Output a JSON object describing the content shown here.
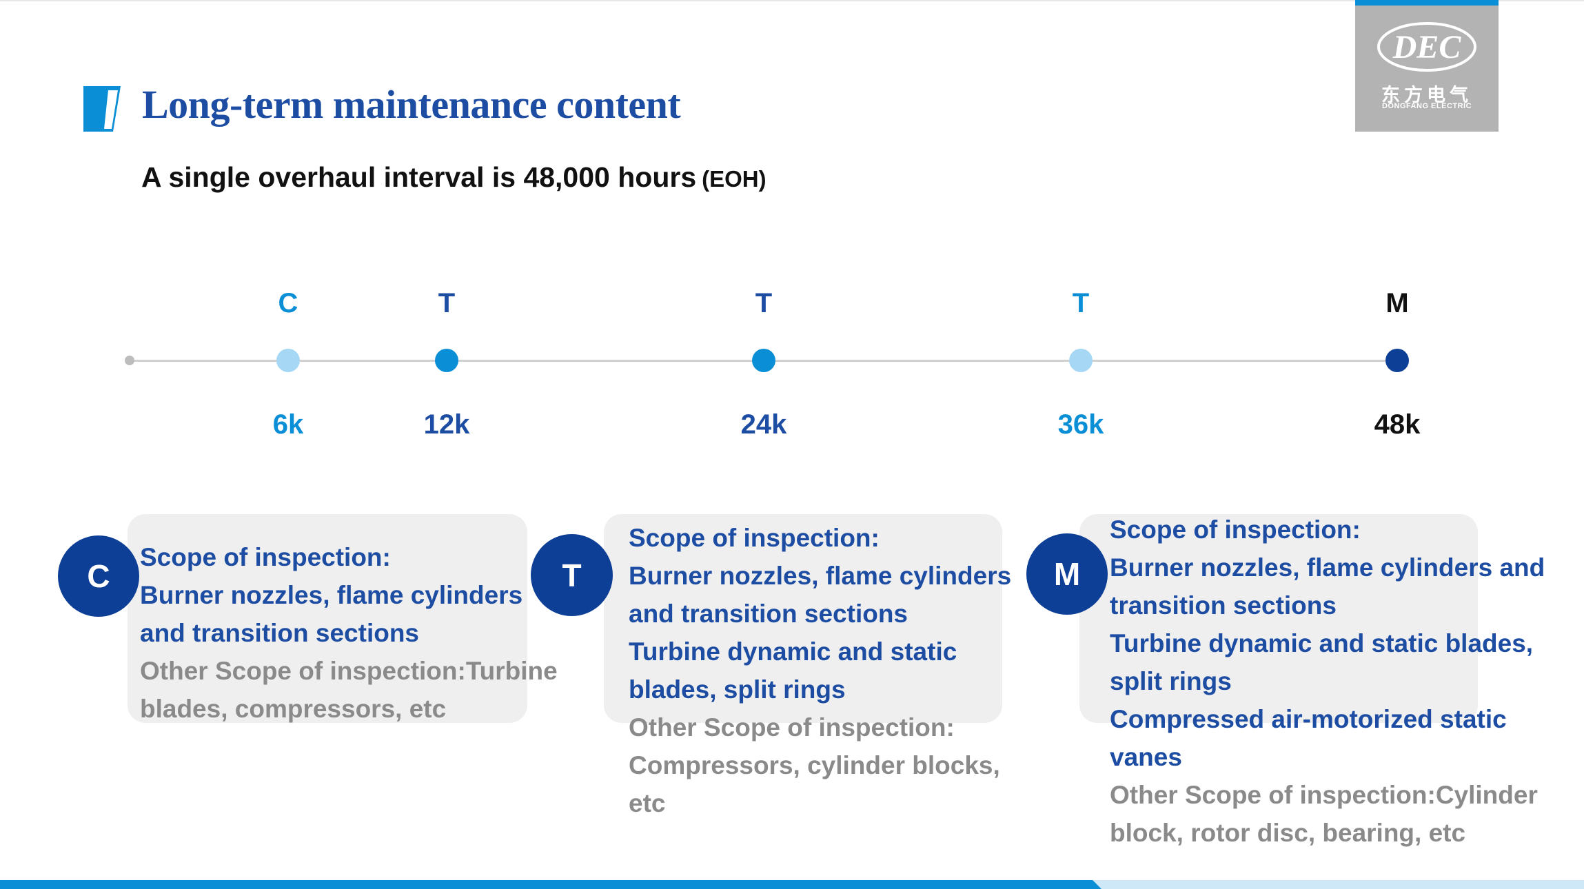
{
  "logo": {
    "mark_text": "DEC",
    "cn_text": "东方电气",
    "en_text": "DONGFANG ELECTRIC"
  },
  "title": "Long-term maintenance content",
  "subtitle": {
    "text": "A single overhaul interval is 48,000 hours",
    "note": "(EOH)"
  },
  "timeline": {
    "points": [
      {
        "letter": "C",
        "hours": "6k",
        "color": "#0a8fd7",
        "dot": "#a6d8f5"
      },
      {
        "letter": "T",
        "hours": "12k",
        "color": "#1d4da3",
        "dot": "#0a8fd7"
      },
      {
        "letter": "T",
        "hours": "24k",
        "color": "#1d4da3",
        "dot": "#0a8fd7"
      },
      {
        "letter": "T",
        "hours": "36k",
        "color": "#0a8fd7",
        "dot": "#a6d8f5"
      },
      {
        "letter": "M",
        "hours": "48k",
        "color": "#111111",
        "dot": "#0e3f96"
      }
    ]
  },
  "cards": [
    {
      "badge": "C",
      "items": [
        {
          "text": "Scope of inspection:",
          "tone": "blue"
        },
        {
          "text": "Burner nozzles, flame cylinders",
          "tone": "blue"
        },
        {
          "text": "and transition sections",
          "tone": "blue"
        },
        {
          "text": "Other Scope of inspection:Turbine",
          "tone": "gray"
        },
        {
          "text": "blades, compressors, etc",
          "tone": "gray"
        }
      ]
    },
    {
      "badge": "T",
      "items": [
        {
          "text": "Scope of inspection:",
          "tone": "blue"
        },
        {
          "text": "Burner nozzles, flame cylinders",
          "tone": "blue"
        },
        {
          "text": "and transition sections",
          "tone": "blue"
        },
        {
          "text": "Turbine dynamic and static",
          "tone": "blue"
        },
        {
          "text": "blades, split rings",
          "tone": "blue"
        },
        {
          "text": "Other Scope of inspection:",
          "tone": "gray"
        },
        {
          "text": "Compressors, cylinder blocks,",
          "tone": "gray"
        },
        {
          "text": "etc",
          "tone": "gray"
        }
      ]
    },
    {
      "badge": "M",
      "items": [
        {
          "text": "Scope of inspection:",
          "tone": "blue"
        },
        {
          "text": "Burner nozzles, flame cylinders and",
          "tone": "blue"
        },
        {
          "text": "transition sections",
          "tone": "blue"
        },
        {
          "text": "Turbine dynamic and static blades,",
          "tone": "blue"
        },
        {
          "text": "split rings",
          "tone": "blue"
        },
        {
          "text": "Compressed air-motorized static",
          "tone": "blue"
        },
        {
          "text": "vanes",
          "tone": "blue"
        },
        {
          "text": "Other Scope of inspection:Cylinder",
          "tone": "gray"
        },
        {
          "text": "block, rotor disc, bearing, etc",
          "tone": "gray"
        }
      ]
    }
  ],
  "colors": {
    "brand_blue": "#1d4da3",
    "accent_blue": "#0a8fd7",
    "badge_navy": "#0e3f96",
    "card_gray": "#efefef",
    "muted_text": "#8a8a8a"
  }
}
